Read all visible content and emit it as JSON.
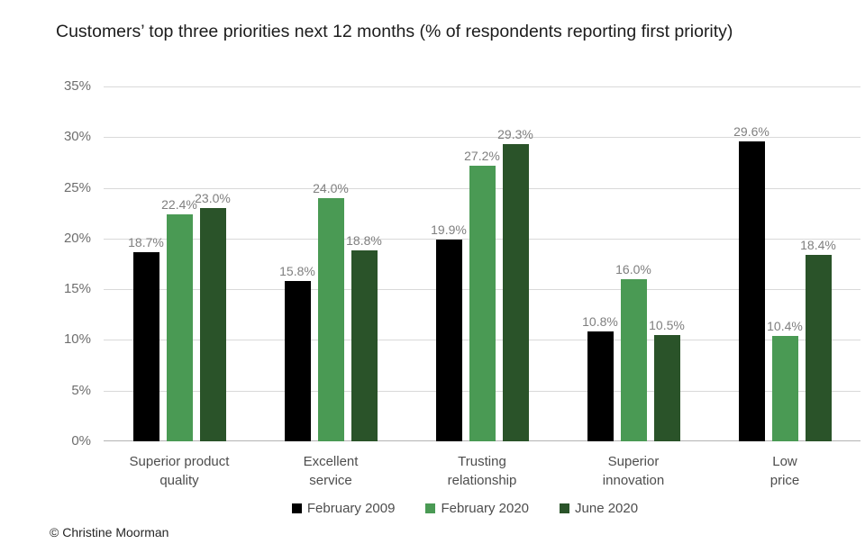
{
  "figure": {
    "copyright": "© Christine Moorman"
  },
  "chart_data": {
    "type": "bar",
    "title": "Customers’ top three priorities next 12 months (% of respondents reporting first priority)",
    "categories": [
      "Superior product\nquality",
      "Excellent\nservice",
      "Trusting\nrelationship",
      "Superior\ninnovation",
      "Low\nprice"
    ],
    "series": [
      {
        "name": "February 2009",
        "color": "#000000",
        "values": [
          18.7,
          15.8,
          19.9,
          10.8,
          29.6
        ]
      },
      {
        "name": "February 2020",
        "color": "#4a9a54",
        "values": [
          22.4,
          24.0,
          27.2,
          16.0,
          10.4
        ]
      },
      {
        "name": "June 2020",
        "color": "#2a5329",
        "values": [
          23.0,
          18.8,
          29.3,
          10.5,
          18.4
        ]
      }
    ],
    "xlabel": "",
    "ylabel": "",
    "ylim": [
      0,
      35
    ],
    "yticks": [
      0,
      5,
      10,
      15,
      20,
      25,
      30,
      35
    ],
    "ytick_suffix": "%",
    "value_label_suffix": "%",
    "grid": true,
    "legend_position": "bottom"
  }
}
